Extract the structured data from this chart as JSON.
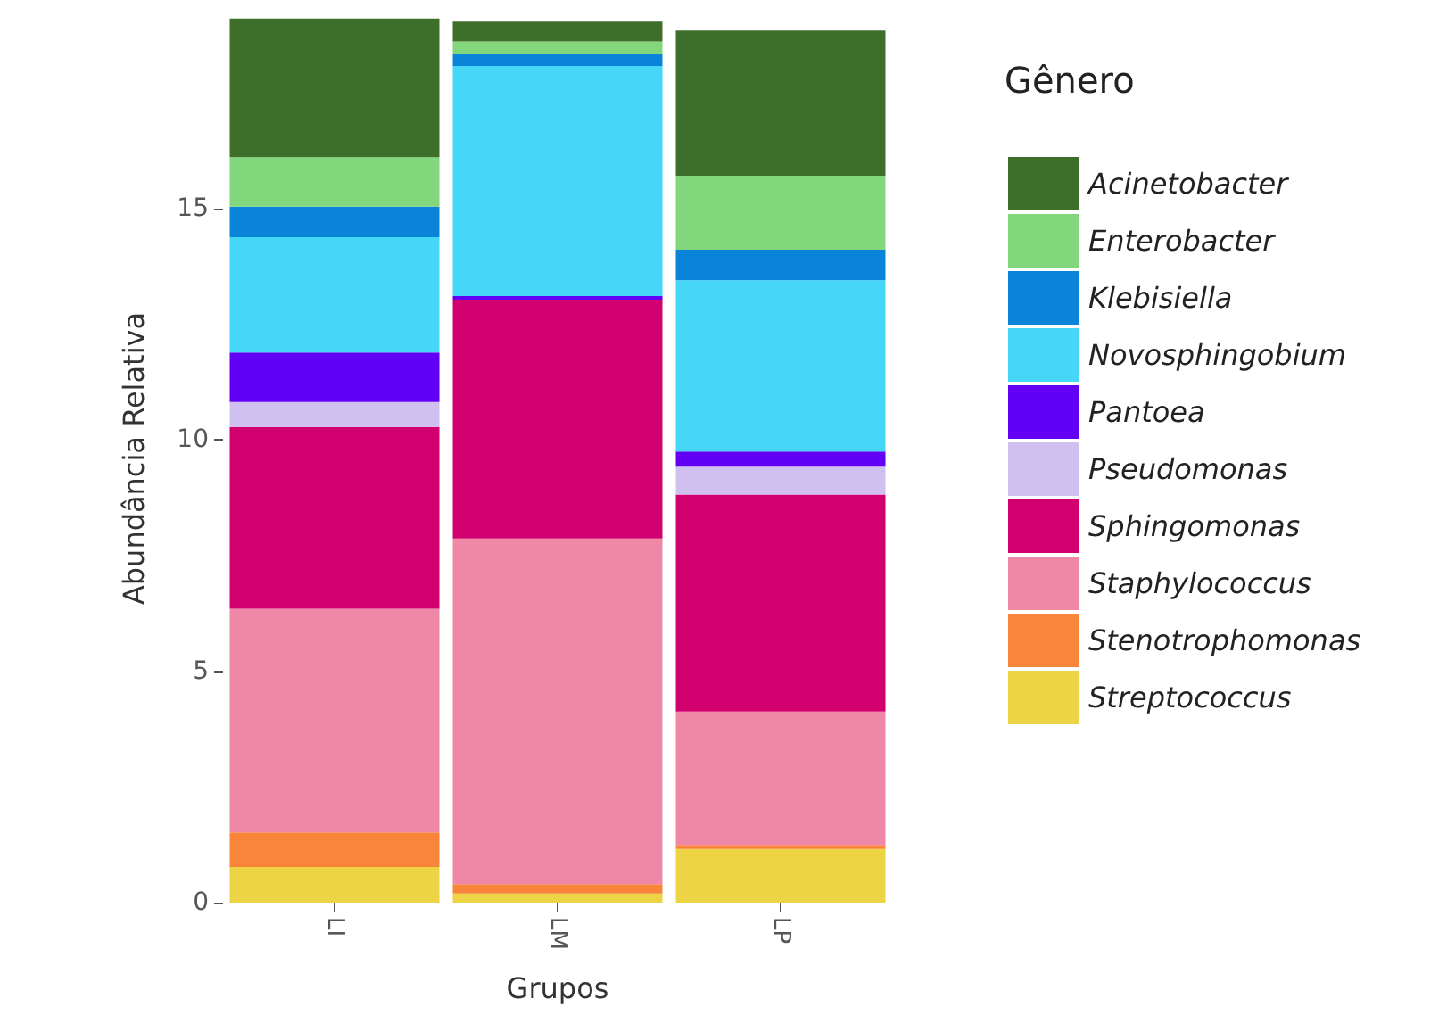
{
  "chart_data": {
    "type": "bar",
    "stacked": true,
    "xlabel": "Grupos",
    "ylabel": "Abundância Relativa",
    "legend_title": "Gênero",
    "legend": "right",
    "grid": false,
    "categories": [
      "LI",
      "LM",
      "LP"
    ],
    "ylim": [
      0,
      19.2
    ],
    "yticks": [
      0,
      5,
      10,
      15
    ],
    "series": [
      {
        "name": "Streptococcus",
        "color": "#ecd445",
        "values": [
          0.77,
          0.2,
          1.16
        ]
      },
      {
        "name": "Stenotrophomonas",
        "color": "#f8853a",
        "values": [
          0.75,
          0.2,
          0.09
        ]
      },
      {
        "name": "Staphylococcus",
        "color": "#ee88a6",
        "values": [
          4.83,
          7.47,
          2.88
        ]
      },
      {
        "name": "Sphingomonas",
        "color": "#d2006e",
        "values": [
          3.93,
          5.16,
          4.69
        ]
      },
      {
        "name": "Pseudomonas",
        "color": "#cfc0f0",
        "values": [
          0.54,
          null,
          0.6
        ]
      },
      {
        "name": "Pantoea",
        "color": "#6200f5",
        "values": [
          1.07,
          0.08,
          0.33
        ]
      },
      {
        "name": "Novosphingobium",
        "color": "#45d6f8",
        "values": [
          2.49,
          4.97,
          3.7
        ]
      },
      {
        "name": "Klebisiella",
        "color": "#0a84d8",
        "values": [
          0.66,
          0.26,
          0.66
        ]
      },
      {
        "name": "Enterobacter",
        "color": "#82d67c",
        "values": [
          1.07,
          0.27,
          1.6
        ]
      },
      {
        "name": "Acinetobacter",
        "color": "#3d6e2a",
        "values": [
          3.0,
          0.43,
          3.14
        ]
      }
    ]
  }
}
